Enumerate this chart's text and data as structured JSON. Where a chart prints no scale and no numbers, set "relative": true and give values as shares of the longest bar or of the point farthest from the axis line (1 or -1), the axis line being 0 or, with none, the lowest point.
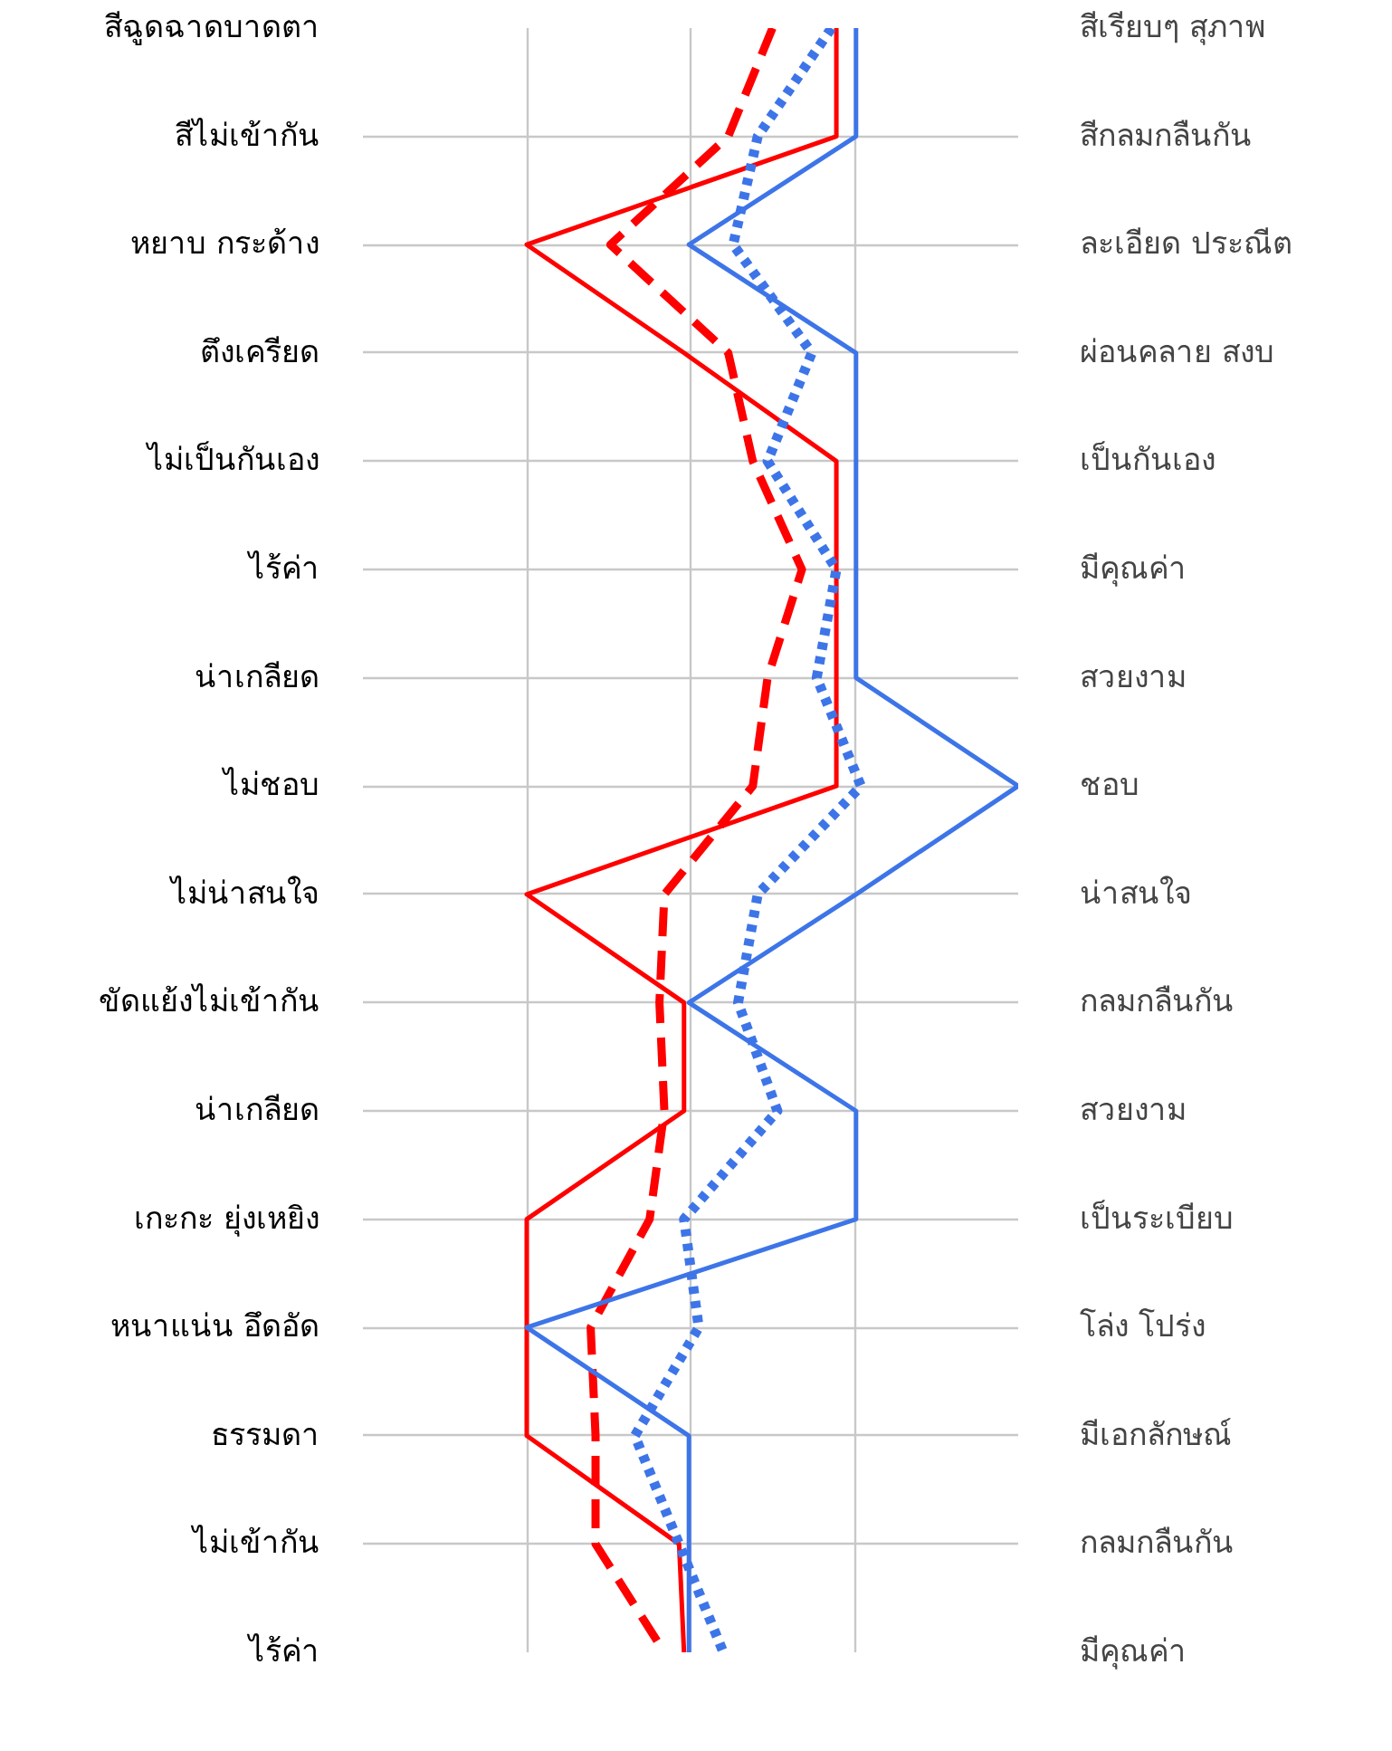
{
  "chart_data": {
    "type": "line",
    "orientation": "horizontal",
    "relative": true,
    "grid": true,
    "categories": [
      "สีฉูดฉาดบาดตา",
      "สีไม่เข้ากัน",
      "หยาบ กระด้าง",
      "ตึงเครียด",
      "ไม่เป็นกันเอง",
      "ไร้ค่า",
      "น่าเกลียด",
      "ไม่ชอบ",
      "ไม่น่าสนใจ",
      "ขัดแย้งไม่เข้ากัน",
      "น่าเกลียด",
      "เกะกะ ยุ่งเหยิง",
      "หนาแน่น อึดอัด",
      "ธรรมดา",
      "ไม่เข้ากัน",
      "ไร้ค่า"
    ],
    "y2_categories": [
      "สีเรียบๆ สุภาพ",
      "สีกลมกลืนกัน",
      "ละเอียด ประณีต",
      "ผ่อนคลาย สงบ",
      "เป็นกันเอง",
      "มีคุณค่า",
      "สวยงาม",
      "ชอบ",
      "น่าสนใจ",
      "กลมกลืนกัน",
      "สวยงาม",
      "เป็นระเบียบ",
      "โล่ง โปร่ง",
      "มีเอกลักษณ์",
      "กลมกลืนกัน",
      "มีคุณค่า"
    ],
    "series": [
      {
        "color": "#ff0000",
        "line_style": "solid",
        "values": [
          0.63,
          0.63,
          0,
          0.32,
          0.63,
          0.63,
          0.63,
          0.63,
          0,
          0.32,
          0.32,
          0,
          0,
          0,
          0.31,
          0.32
        ]
      },
      {
        "color": "#ff0000",
        "line_style": "dashed",
        "values": [
          0.5,
          0.41,
          0.17,
          0.41,
          0.46,
          0.56,
          0.49,
          0.46,
          0.28,
          0.27,
          0.28,
          0.25,
          0.13,
          0.14,
          0.14,
          0.28
        ]
      },
      {
        "color": "#3d75e8",
        "line_style": "solid",
        "values": [
          0.67,
          0.67,
          0.33,
          0.67,
          0.67,
          0.67,
          0.67,
          1,
          0.67,
          0.33,
          0.67,
          0.67,
          0,
          0.33,
          0.33,
          0.33
        ]
      },
      {
        "color": "#3d75e8",
        "line_style": "dotted",
        "values": [
          0.62,
          0.47,
          0.42,
          0.58,
          0.49,
          0.63,
          0.59,
          0.68,
          0.47,
          0.43,
          0.51,
          0.32,
          0.35,
          0.22,
          0.31,
          0.4
        ]
      }
    ]
  }
}
